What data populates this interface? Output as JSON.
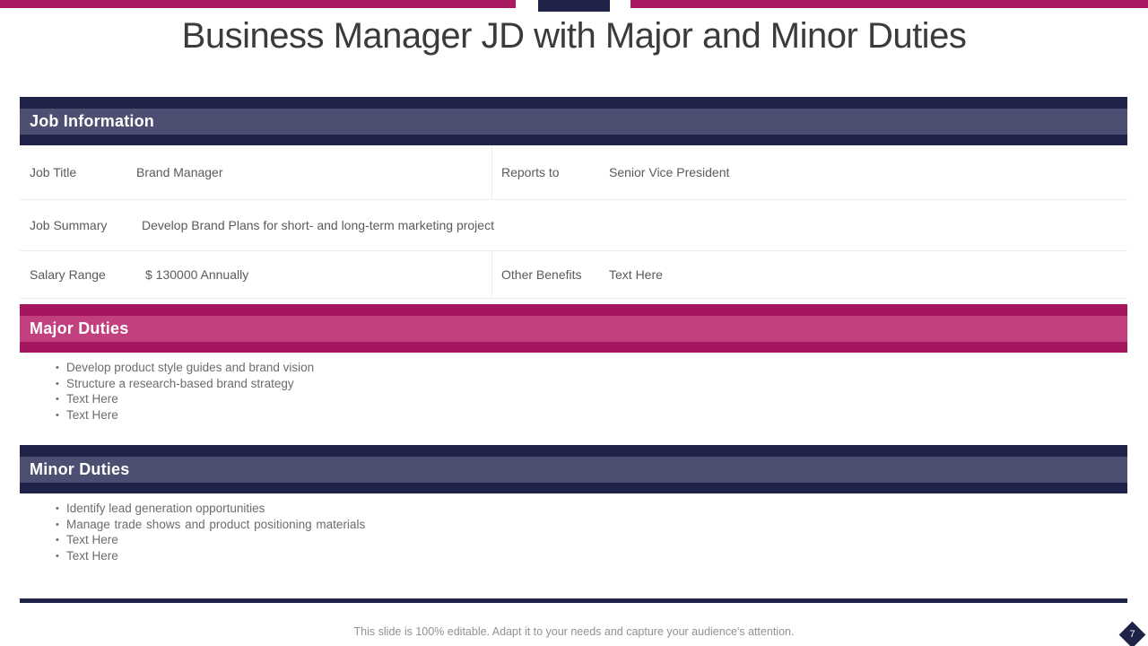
{
  "slide": {
    "title": "Business Manager JD with Major and Minor Duties",
    "footer_note": "This slide is 100% editable. Adapt it to your needs and capture your audience's attention.",
    "page_number": "7"
  },
  "colors": {
    "accent_magenta": "#A6165F",
    "accent_magenta_light": "#C2407E",
    "accent_navy": "#1F2347",
    "accent_slate": "#4C4F72"
  },
  "job_information": {
    "header": "Job Information",
    "fields": {
      "job_title": {
        "label": "Job Title",
        "value": "Brand Manager"
      },
      "reports_to": {
        "label": "Reports to",
        "value": "Senior Vice President"
      },
      "job_summary": {
        "label": "Job Summary",
        "value": "Develop Brand Plans for short- and long-term marketing project"
      },
      "salary_range": {
        "label": "Salary Range",
        "value": "$ 130000 Annually"
      },
      "other_benefits": {
        "label": "Other Benefits",
        "value": "Text Here"
      }
    }
  },
  "major_duties": {
    "header": "Major Duties",
    "bullets": [
      "Develop product style guides and brand vision",
      "Structure a research-based brand strategy",
      "Text Here",
      "Text Here"
    ]
  },
  "minor_duties": {
    "header": "Minor Duties",
    "bullets": [
      "Identify lead generation opportunities",
      "Manage trade shows and  product positioning materials",
      "Text Here",
      "Text Here"
    ]
  }
}
